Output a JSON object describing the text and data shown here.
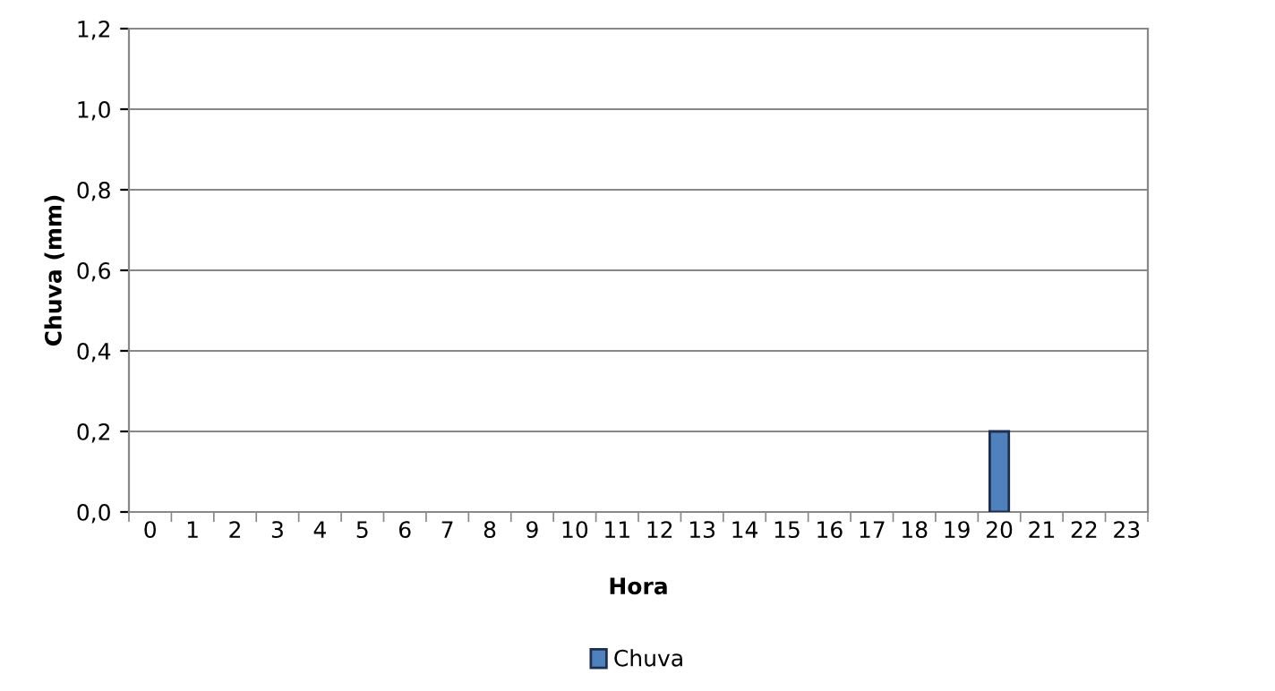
{
  "chart_data": {
    "type": "bar",
    "xlabel": "Hora",
    "ylabel": "Chuva (mm)",
    "categories": [
      "0",
      "1",
      "2",
      "3",
      "4",
      "5",
      "6",
      "7",
      "8",
      "9",
      "10",
      "11",
      "12",
      "13",
      "14",
      "15",
      "16",
      "17",
      "18",
      "19",
      "20",
      "21",
      "22",
      "23"
    ],
    "series": [
      {
        "name": "Chuva",
        "color": "#4f81bd",
        "values": [
          0,
          0,
          0,
          0,
          0,
          0,
          0,
          0,
          0,
          0,
          0,
          0,
          0,
          0,
          0,
          0,
          0,
          0,
          0,
          0,
          0.2,
          0,
          0,
          0
        ]
      }
    ],
    "ylim": [
      0,
      1.2
    ],
    "yticks": [
      {
        "value": 0,
        "label": "0,0"
      },
      {
        "value": 0.2,
        "label": "0,2"
      },
      {
        "value": 0.4,
        "label": "0,4"
      },
      {
        "value": 0.6,
        "label": "0,6"
      },
      {
        "value": 0.8,
        "label": "0,8"
      },
      {
        "value": 1.0,
        "label": "1,0"
      },
      {
        "value": 1.2,
        "label": "1,2"
      }
    ],
    "grid": "y",
    "legend": "bottom"
  }
}
